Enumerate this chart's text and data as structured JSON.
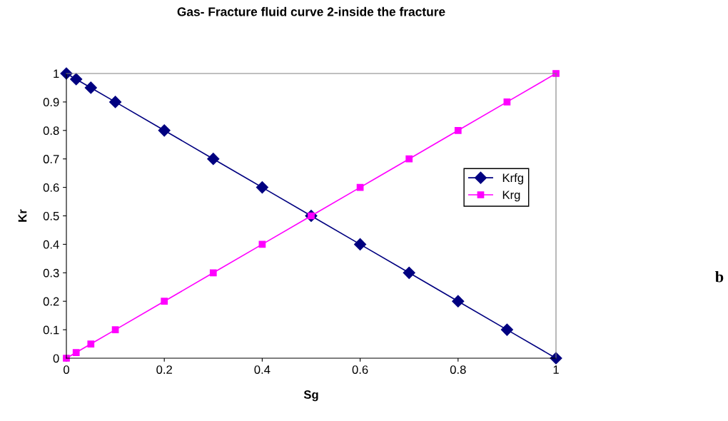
{
  "chart_data": {
    "type": "line",
    "title": "Gas- Fracture fluid curve 2-inside the fracture",
    "xlabel": "Sg",
    "ylabel": "Kr",
    "x": [
      0,
      0.02,
      0.05,
      0.1,
      0.2,
      0.3,
      0.4,
      0.5,
      0.6,
      0.7,
      0.8,
      0.9,
      1
    ],
    "series": [
      {
        "name": "Krfg",
        "color": "#000080",
        "marker": "diamond",
        "values": [
          1,
          0.98,
          0.95,
          0.9,
          0.8,
          0.7,
          0.6,
          0.5,
          0.4,
          0.3,
          0.2,
          0.1,
          0
        ]
      },
      {
        "name": "Krg",
        "color": "#ff00ff",
        "marker": "square",
        "values": [
          0,
          0.02,
          0.05,
          0.1,
          0.2,
          0.3,
          0.4,
          0.5,
          0.6,
          0.7,
          0.8,
          0.9,
          1
        ]
      }
    ],
    "xlim": [
      0,
      1
    ],
    "xticks": [
      0,
      0.2,
      0.4,
      0.6,
      0.8,
      1
    ],
    "ylim": [
      0,
      1
    ],
    "yticks": [
      0,
      0.1,
      0.2,
      0.3,
      0.4,
      0.5,
      0.6,
      0.7,
      0.8,
      0.9,
      1
    ],
    "grid": false,
    "legend": "right",
    "line_style": "solid",
    "annotations": [
      "b"
    ]
  }
}
